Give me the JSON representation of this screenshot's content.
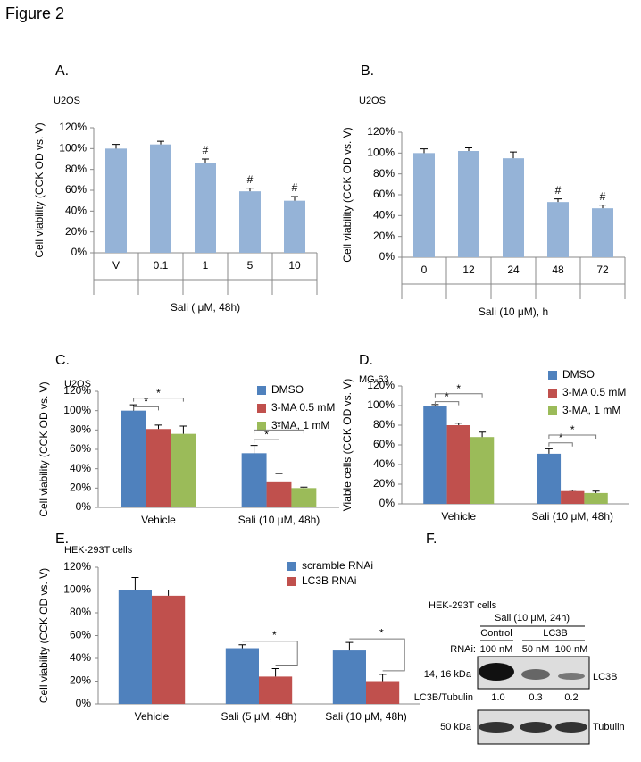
{
  "figure_title": "Figure 2",
  "chart_data": [
    {
      "type": "bar",
      "panel_label": "A.",
      "subtitle": "U2OS",
      "ylabel": "Cell viability (CCK OD vs. V)",
      "xlabel": "Sali ( μM, 48h)",
      "categories": [
        "V",
        "0.1",
        "1",
        "5",
        "10"
      ],
      "values": [
        100,
        104,
        86,
        59,
        50
      ],
      "errors": [
        4,
        3,
        4,
        3,
        4
      ],
      "color": "#95b3d7",
      "value_annotations": [
        null,
        null,
        "#",
        "#",
        "#"
      ],
      "ylim": [
        0,
        120
      ],
      "yticks": [
        {
          "value": 0,
          "label": "0%"
        },
        {
          "value": 20,
          "label": "20%"
        },
        {
          "value": 40,
          "label": "40%"
        },
        {
          "value": 60,
          "label": "60%"
        },
        {
          "value": 80,
          "label": "80%"
        },
        {
          "value": 100,
          "label": "100%"
        },
        {
          "value": 120,
          "label": "120%"
        }
      ]
    },
    {
      "type": "bar",
      "panel_label": "B.",
      "subtitle": "U2OS",
      "ylabel": "Cell viability (CCK OD vs. V)",
      "xlabel": "Sali (10 μM), h",
      "categories": [
        "0",
        "12",
        "24",
        "48",
        "72"
      ],
      "values": [
        100,
        102,
        95,
        53,
        47
      ],
      "errors": [
        4,
        3,
        6,
        3,
        3
      ],
      "color": "#95b3d7",
      "value_annotations": [
        null,
        null,
        null,
        "#",
        "#"
      ],
      "ylim": [
        0,
        120
      ],
      "yticks": [
        {
          "value": 0,
          "label": "0%"
        },
        {
          "value": 20,
          "label": "20%"
        },
        {
          "value": 40,
          "label": "40%"
        },
        {
          "value": 60,
          "label": "60%"
        },
        {
          "value": 80,
          "label": "80%"
        },
        {
          "value": 100,
          "label": "100%"
        },
        {
          "value": 120,
          "label": "120%"
        }
      ]
    },
    {
      "type": "bar",
      "panel_label": "C.",
      "subtitle": "U2OS",
      "ylabel": "Cell viability (CCK OD vs. V)",
      "categories": [
        "Vehicle",
        "Sali (10 μM, 48h)"
      ],
      "series": [
        {
          "name": "DMSO",
          "color": "#4f81bd",
          "values": [
            100,
            56
          ],
          "errors": [
            6,
            8
          ]
        },
        {
          "name": "3-MA 0.5 mM",
          "color": "#c0504d",
          "values": [
            81,
            26
          ],
          "errors": [
            4,
            9
          ]
        },
        {
          "name": "3-MA, 1 mM",
          "color": "#9bbb59",
          "values": [
            76,
            20
          ],
          "errors": [
            8,
            1
          ]
        }
      ],
      "significance": [
        "*",
        "*",
        "*",
        "*"
      ],
      "ylim": [
        0,
        120
      ],
      "yticks": [
        {
          "value": 0,
          "label": "0%"
        },
        {
          "value": 20,
          "label": "20%"
        },
        {
          "value": 40,
          "label": "40%"
        },
        {
          "value": 60,
          "label": "60%"
        },
        {
          "value": 80,
          "label": "80%"
        },
        {
          "value": 100,
          "label": "100%"
        },
        {
          "value": 120,
          "label": "120%"
        }
      ]
    },
    {
      "type": "bar",
      "panel_label": "D.",
      "subtitle": "MG-63",
      "ylabel": "Viable cells  (CCK OD vs. V)",
      "categories": [
        "Vehicle",
        "Sali (10 μM, 48h)"
      ],
      "series": [
        {
          "name": "DMSO",
          "color": "#4f81bd",
          "values": [
            100,
            51
          ],
          "errors": [
            1,
            5
          ]
        },
        {
          "name": "3-MA 0.5 mM",
          "color": "#c0504d",
          "values": [
            80,
            13
          ],
          "errors": [
            2,
            1
          ]
        },
        {
          "name": "3-MA, 1 mM",
          "color": "#9bbb59",
          "values": [
            68,
            11
          ],
          "errors": [
            5,
            2
          ]
        }
      ],
      "significance": [
        "*",
        "*",
        "*",
        "*"
      ],
      "ylim": [
        0,
        120
      ],
      "yticks": [
        {
          "value": 0,
          "label": "0%"
        },
        {
          "value": 20,
          "label": "20%"
        },
        {
          "value": 40,
          "label": "40%"
        },
        {
          "value": 60,
          "label": "60%"
        },
        {
          "value": 80,
          "label": "80%"
        },
        {
          "value": 100,
          "label": "100%"
        },
        {
          "value": 120,
          "label": "120%"
        }
      ]
    },
    {
      "type": "bar",
      "panel_label": "E.",
      "subtitle": "HEK-293T cells",
      "ylabel": "Cell viability (CCK OD vs. V)",
      "categories": [
        "Vehicle",
        "Sali (5 μM, 48h)",
        "Sali (10 μM, 48h)"
      ],
      "series": [
        {
          "name": "scramble RNAi",
          "color": "#4f81bd",
          "values": [
            100,
            49,
            47
          ],
          "errors": [
            11,
            3,
            7
          ]
        },
        {
          "name": "LC3B RNAi",
          "color": "#c0504d",
          "values": [
            95,
            24,
            20
          ],
          "errors": [
            5,
            7,
            6
          ]
        }
      ],
      "significance": [
        "*",
        "*"
      ],
      "ylim": [
        0,
        120
      ],
      "yticks": [
        {
          "value": 0,
          "label": "0%"
        },
        {
          "value": 20,
          "label": "20%"
        },
        {
          "value": 40,
          "label": "40%"
        },
        {
          "value": 60,
          "label": "60%"
        },
        {
          "value": 80,
          "label": "80%"
        },
        {
          "value": 100,
          "label": "100%"
        },
        {
          "value": 120,
          "label": "120%"
        }
      ]
    }
  ],
  "blot": {
    "panel_label": "F.",
    "cells": "HEK-293T cells",
    "treatment": "Sali (10 μM, 24h)",
    "groups": [
      "Control",
      "LC3B"
    ],
    "rnai_label": "RNAi:",
    "lanes": [
      "100 nM",
      "50 nM",
      "100 nM"
    ],
    "size_1": "14, 16 kDa",
    "protein_1": "LC3B",
    "ratio_label": "LC3B/Tubulin",
    "ratios": [
      "1.0",
      "0.3",
      "0.2"
    ],
    "size_2": "50 kDa",
    "protein_2": "Tubulin"
  }
}
